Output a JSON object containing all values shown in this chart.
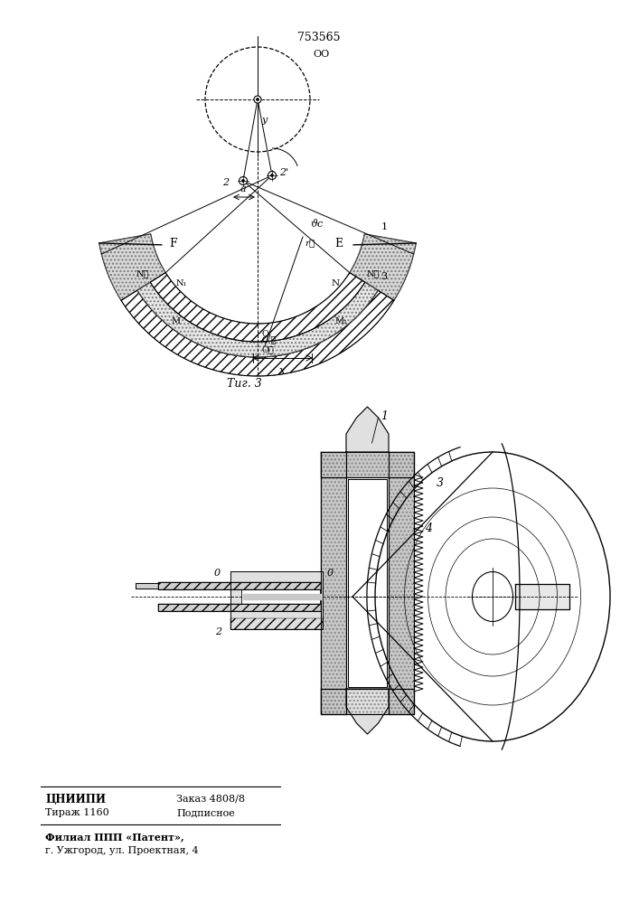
{
  "patent_number": "753565",
  "fig3_label": "Τиг. 3",
  "bg_color": "#ffffff",
  "line_color": "#000000",
  "footer_line1_col1": "ЦНИИПИ",
  "footer_line1_col2": "Заказ 4808/8",
  "footer_line2_col1": "Тираж 1160",
  "footer_line2_col2": "Подписное",
  "footer_line3": "Филиал ППП «Патент»,",
  "footer_line4": "г. Ужгород, ул. Проектная, 4"
}
